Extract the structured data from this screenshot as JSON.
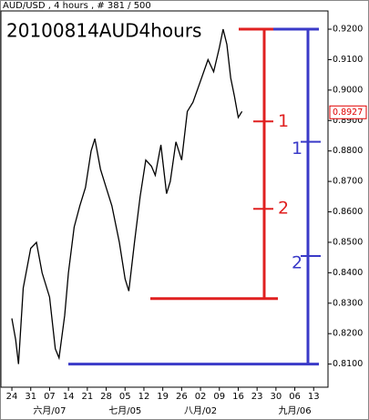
{
  "chart_data": {
    "type": "line",
    "header": "AUD/USD , 4 hours , # 381 / 500",
    "title": "20100814AUD4hours",
    "x": [
      0.0,
      0.2,
      0.35,
      0.6,
      1.0,
      1.3,
      1.6,
      2.0,
      2.3,
      2.5,
      2.8,
      3.0,
      3.3,
      3.6,
      3.9,
      4.2,
      4.4,
      4.7,
      5.0,
      5.3,
      5.7,
      6.0,
      6.2,
      6.5,
      6.8,
      7.1,
      7.4,
      7.6,
      7.9,
      8.2,
      8.4,
      8.7,
      9.0,
      9.3,
      9.6,
      10.0,
      10.4,
      10.7,
      11.0,
      11.2,
      11.4,
      11.6,
      11.8,
      12.0,
      12.2
    ],
    "series": [
      {
        "color": "#000000",
        "values": [
          0.825,
          0.818,
          0.81,
          0.835,
          0.848,
          0.85,
          0.84,
          0.832,
          0.815,
          0.812,
          0.826,
          0.84,
          0.855,
          0.862,
          0.868,
          0.88,
          0.884,
          0.874,
          0.868,
          0.862,
          0.85,
          0.838,
          0.834,
          0.85,
          0.865,
          0.877,
          0.875,
          0.872,
          0.882,
          0.866,
          0.87,
          0.883,
          0.877,
          0.893,
          0.896,
          0.903,
          0.91,
          0.906,
          0.914,
          0.92,
          0.915,
          0.904,
          0.898,
          0.891,
          0.893
        ]
      }
    ],
    "last_price": {
      "value": 0.8927,
      "label": "0.8927",
      "color": "#e00000"
    },
    "xlim": [
      -0.63,
      16.76
    ],
    "xticks": [
      {
        "value": 0,
        "label": "24"
      },
      {
        "value": 1,
        "label": "31"
      },
      {
        "value": 2,
        "label": "07"
      },
      {
        "value": 3,
        "label": "14"
      },
      {
        "value": 4,
        "label": "21"
      },
      {
        "value": 5,
        "label": "28"
      },
      {
        "value": 6,
        "label": "05"
      },
      {
        "value": 7,
        "label": "12"
      },
      {
        "value": 8,
        "label": "19"
      },
      {
        "value": 9,
        "label": "26"
      },
      {
        "value": 10,
        "label": "02"
      },
      {
        "value": 11,
        "label": "09"
      },
      {
        "value": 12,
        "label": "16"
      },
      {
        "value": 13,
        "label": "23"
      },
      {
        "value": 14,
        "label": "30"
      },
      {
        "value": 15,
        "label": "06"
      },
      {
        "value": 16,
        "label": "13"
      }
    ],
    "month_ticks": [
      {
        "value": 2,
        "label": "六月/07"
      },
      {
        "value": 6,
        "label": "七月/05"
      },
      {
        "value": 10,
        "label": "八月/02"
      },
      {
        "value": 15,
        "label": "九月/06"
      }
    ],
    "ylim": [
      0.8045,
      0.9245
    ],
    "yticks": [
      {
        "value": 0.81,
        "label": "0.8100"
      },
      {
        "value": 0.82,
        "label": "0.8200"
      },
      {
        "value": 0.83,
        "label": "0.8300"
      },
      {
        "value": 0.84,
        "label": "0.8400"
      },
      {
        "value": 0.85,
        "label": "0.8500"
      },
      {
        "value": 0.86,
        "label": "0.8600"
      },
      {
        "value": 0.87,
        "label": "0.8700"
      },
      {
        "value": 0.88,
        "label": "0.8800"
      },
      {
        "value": 0.89,
        "label": "0.8900"
      },
      {
        "value": 0.9,
        "label": "0.9000"
      },
      {
        "value": 0.91,
        "label": "0.9100"
      },
      {
        "value": 0.92,
        "label": "0.9200"
      }
    ],
    "brackets": [
      {
        "color": "#e02020",
        "top": 0.92,
        "bottom": 0.8315,
        "marks": [
          {
            "value": 0.8897,
            "label": "1"
          },
          {
            "value": 0.861,
            "label": "2"
          }
        ]
      },
      {
        "color": "#3a3ac8",
        "top": 0.92,
        "bottom": 0.81,
        "marks": [
          {
            "value": 0.883,
            "label": "1"
          },
          {
            "value": 0.8455,
            "label": "2"
          }
        ]
      }
    ]
  }
}
